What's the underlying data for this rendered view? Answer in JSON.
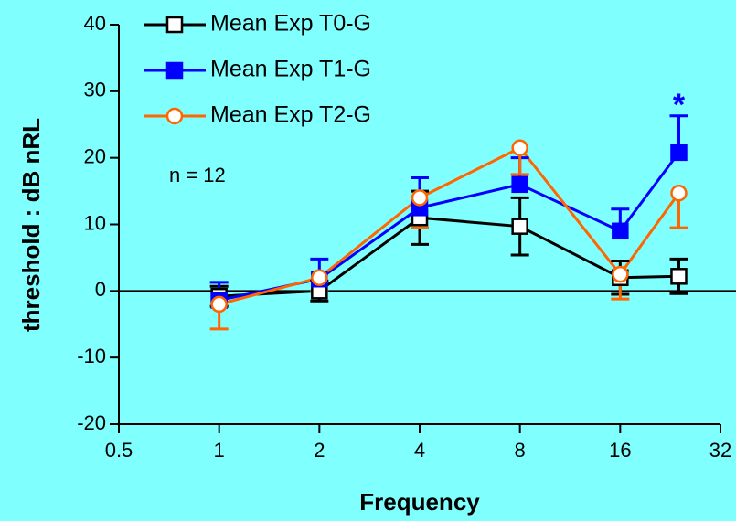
{
  "chart_data": {
    "type": "line",
    "x_label": "Frequency",
    "y_label": "threshold : dB nRL",
    "x": [
      1,
      2,
      4,
      8,
      16,
      24
    ],
    "x_scale": "log2",
    "xlim": [
      0.5,
      32
    ],
    "xticks": [
      0.5,
      1,
      2,
      4,
      8,
      16,
      32
    ],
    "ylim": [
      -20,
      40
    ],
    "yticks": [
      -20,
      -10,
      0,
      10,
      20,
      30,
      40
    ],
    "zero_line": true,
    "legend": "top-left",
    "annotations": [
      "n = 12",
      "*"
    ],
    "series": [
      {
        "name": "Mean Exp T0-G",
        "color": "#000000",
        "marker": "square-open",
        "error_direction": "both",
        "values": [
          -0.8,
          0,
          11,
          9.7,
          2,
          2.2
        ],
        "errors": [
          1.5,
          1.5,
          4,
          4.3,
          2.5,
          2.6
        ]
      },
      {
        "name": "Mean Exp T1-G",
        "color": "#0000ff",
        "marker": "square-filled",
        "error_direction": "up",
        "values": [
          -1.4,
          1.8,
          12.5,
          16,
          9,
          20.8
        ],
        "errors": [
          2.7,
          3,
          4.5,
          4,
          3.3,
          5.5
        ]
      },
      {
        "name": "Mean Exp T2-G",
        "color": "#ff6600",
        "marker": "circle-open",
        "error_direction": "down",
        "values": [
          -2,
          2,
          14,
          21.5,
          2.5,
          14.7
        ],
        "errors": [
          3.7,
          2,
          4.5,
          4,
          3.7,
          5.2
        ]
      }
    ]
  }
}
